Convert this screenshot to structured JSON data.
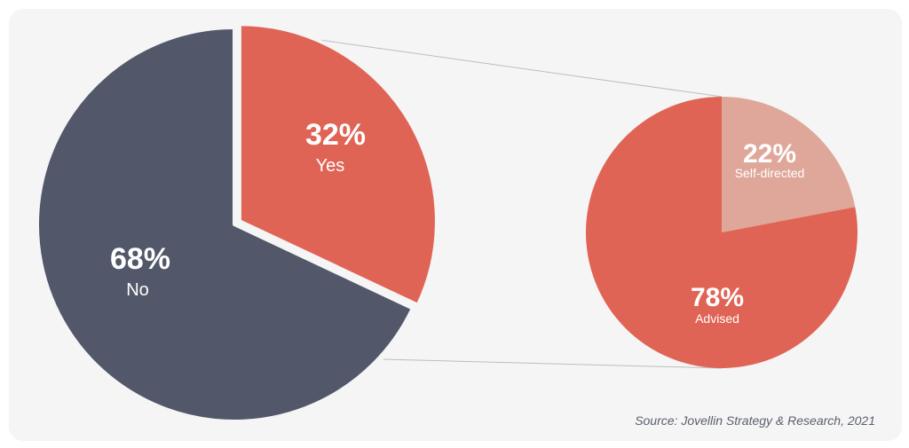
{
  "chart_data": [
    {
      "type": "pie",
      "slices": [
        {
          "label": "No",
          "value": 68,
          "value_label": "68%",
          "color": "#525869"
        },
        {
          "label": "Yes",
          "value": 32,
          "value_label": "32%",
          "color": "#e06455"
        }
      ],
      "exploded": "Yes"
    },
    {
      "type": "pie",
      "breakdown_of": "Yes",
      "slices": [
        {
          "label": "Self-directed",
          "value": 22,
          "value_label": "22%",
          "color": "#dfa799"
        },
        {
          "label": "Advised",
          "value": 78,
          "value_label": "78%",
          "color": "#e06455"
        }
      ]
    }
  ],
  "source": "Source: Jovellin Strategy & Research, 2021",
  "colors": {
    "background": "#f5f5f5",
    "connector": "#bdbdbd",
    "label_text": "#ffffff"
  }
}
